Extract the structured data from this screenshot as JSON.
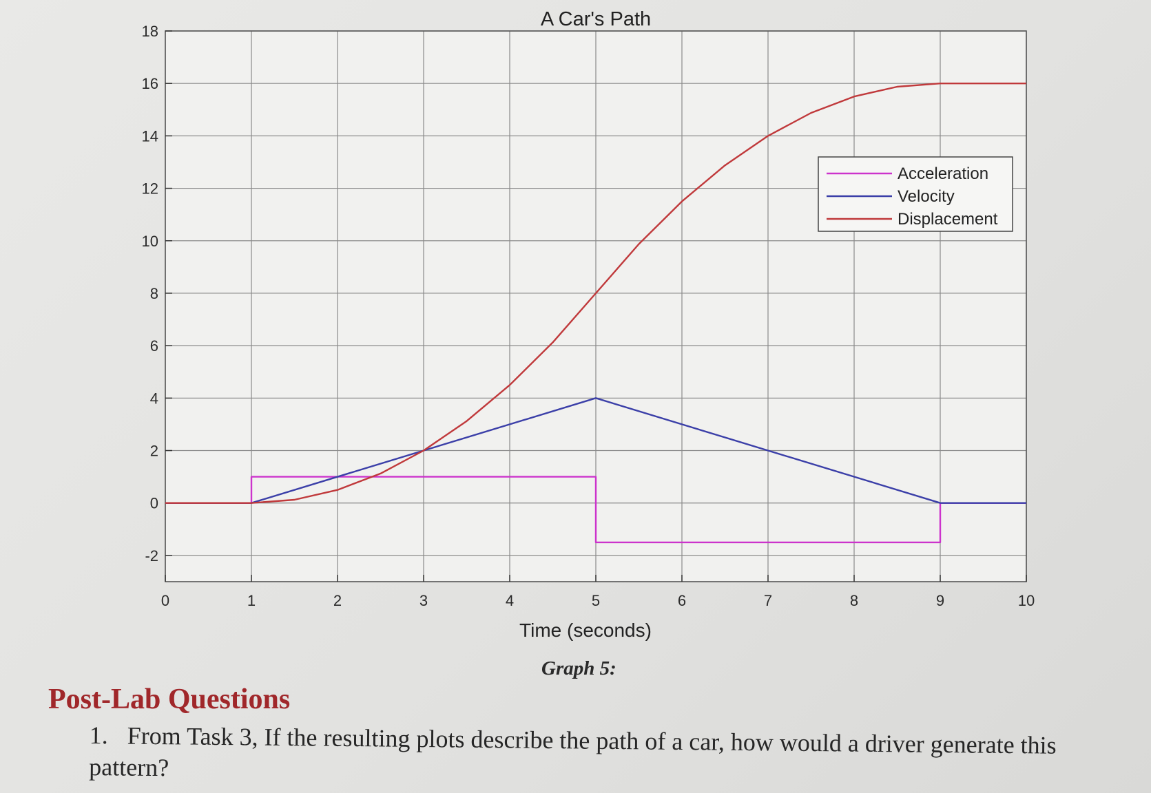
{
  "chart_data": {
    "type": "line",
    "title": "A Car's Path",
    "xlabel": "Time (seconds)",
    "ylabel": "",
    "xlim": [
      0,
      10
    ],
    "ylim": [
      -3,
      18
    ],
    "x_ticks": [
      "0",
      "1",
      "2",
      "3",
      "4",
      "5",
      "6",
      "7",
      "8",
      "9",
      "10"
    ],
    "y_ticks": [
      "18",
      "16",
      "14",
      "12",
      "10",
      "8",
      "6",
      "4",
      "2",
      "0",
      "-2"
    ],
    "grid": true,
    "legend_position": "top-right",
    "series": [
      {
        "name": "Acceleration",
        "color": "#cc33cc",
        "x": [
          0,
          1,
          1,
          5,
          5,
          9,
          9,
          10
        ],
        "y": [
          0,
          0,
          1,
          1,
          -1.5,
          -1.5,
          0,
          0
        ]
      },
      {
        "name": "Velocity",
        "color": "#3b3fa8",
        "x": [
          0,
          1,
          5,
          9,
          10
        ],
        "y": [
          0,
          0,
          4,
          0,
          0
        ]
      },
      {
        "name": "Displacement",
        "color": "#c0393b",
        "x": [
          0,
          1,
          1.5,
          2,
          2.5,
          3,
          3.5,
          4,
          4.5,
          5,
          5.5,
          6,
          6.5,
          7,
          7.5,
          8,
          8.5,
          9,
          9.5,
          10
        ],
        "y": [
          0,
          0,
          0.125,
          0.5,
          1.125,
          2,
          3.125,
          4.5,
          6.125,
          8,
          9.875,
          11.5,
          12.875,
          14,
          14.875,
          15.5,
          15.875,
          16,
          16,
          16
        ]
      }
    ]
  },
  "caption": "Graph 5:",
  "post_lab": {
    "heading": "Post-Lab Questions",
    "q1_number": "1.",
    "q1_text": "From Task 3, If the resulting plots describe the path of a car, how would a driver generate this pattern?"
  }
}
